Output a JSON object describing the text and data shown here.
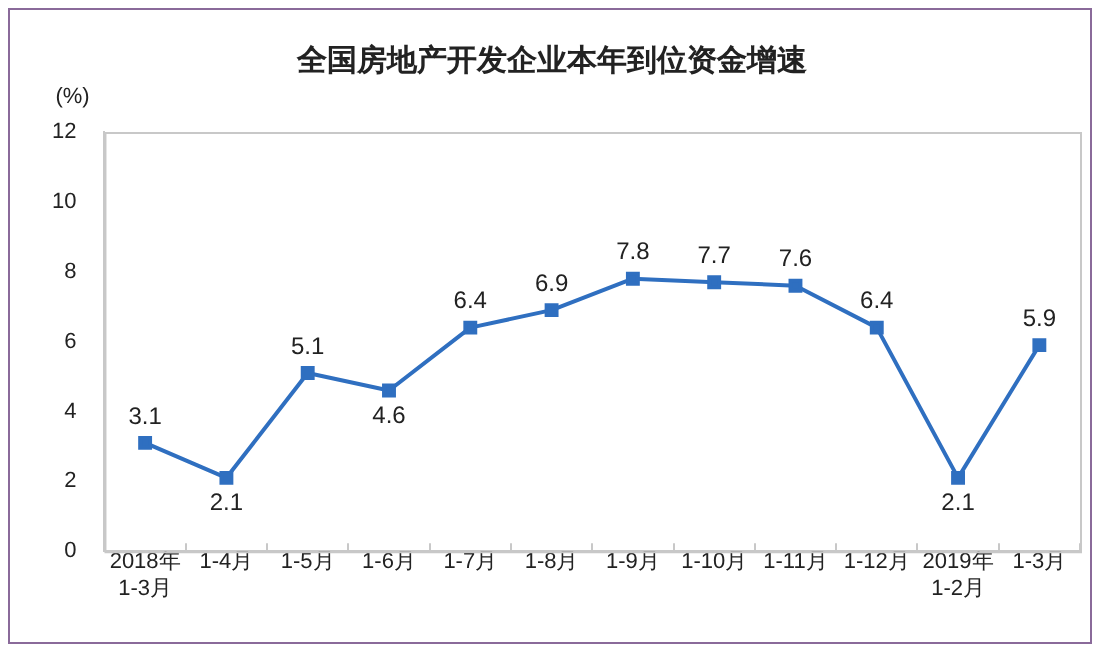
{
  "chart_data": {
    "type": "line",
    "title": "全国房地产开发企业本年到位资金增速",
    "ylabel": "(%)",
    "categories": [
      "2018年\n1-3月",
      "1-4月",
      "1-5月",
      "1-6月",
      "1-7月",
      "1-8月",
      "1-9月",
      "1-10月",
      "1-11月",
      "1-12月",
      "2019年\n1-2月",
      "1-3月"
    ],
    "series": [
      {
        "color": "#2f6fc0",
        "values": [
          3.1,
          2.1,
          5.1,
          4.6,
          6.4,
          6.9,
          7.8,
          7.7,
          7.6,
          6.4,
          2.1,
          5.9
        ]
      }
    ],
    "ylim": [
      0,
      12
    ],
    "yticks": [
      0,
      2,
      4,
      6,
      8,
      10,
      12
    ],
    "grid": false,
    "legend": false,
    "marker": "square",
    "line_style": "solid",
    "data_labels": true
  }
}
